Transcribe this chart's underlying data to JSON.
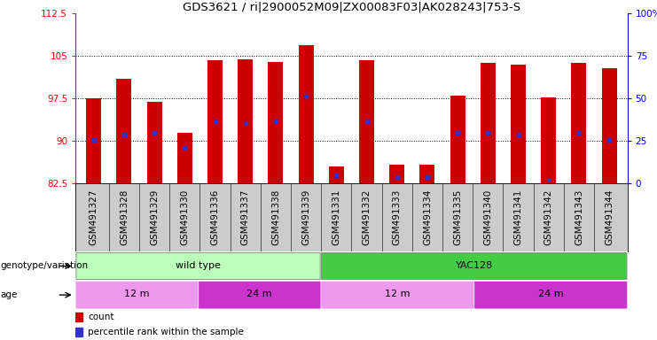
{
  "title": "GDS3621 / ri|2900052M09|ZX00083F03|AK028243|753-S",
  "samples": [
    "GSM491327",
    "GSM491328",
    "GSM491329",
    "GSM491330",
    "GSM491336",
    "GSM491337",
    "GSM491338",
    "GSM491339",
    "GSM491331",
    "GSM491332",
    "GSM491333",
    "GSM491334",
    "GSM491335",
    "GSM491340",
    "GSM491341",
    "GSM491342",
    "GSM491343",
    "GSM491344"
  ],
  "bar_bottoms": [
    82.5,
    82.5,
    82.5,
    82.5,
    82.5,
    82.5,
    82.5,
    82.5,
    82.5,
    82.5,
    82.5,
    82.5,
    82.5,
    82.5,
    82.5,
    82.5,
    82.5,
    82.5
  ],
  "bar_tops": [
    97.5,
    101.0,
    97.0,
    91.5,
    104.2,
    104.5,
    104.0,
    107.0,
    85.5,
    104.2,
    85.8,
    85.8,
    98.0,
    103.8,
    103.5,
    97.7,
    103.8,
    102.8
  ],
  "blue_marks": [
    90.2,
    91.2,
    91.5,
    88.8,
    93.5,
    93.2,
    93.5,
    97.8,
    84.0,
    93.5,
    83.7,
    83.7,
    91.5,
    91.5,
    91.2,
    83.2,
    91.5,
    90.2
  ],
  "bar_color": "#cc0000",
  "blue_color": "#3333cc",
  "ylim_left": [
    82.5,
    112.5
  ],
  "yticks_left": [
    82.5,
    90.0,
    97.5,
    105.0,
    112.5
  ],
  "ytick_labels_left": [
    "82.5",
    "90",
    "97.5",
    "105",
    "112.5"
  ],
  "ylim_right": [
    0,
    100
  ],
  "yticks_right": [
    0,
    25,
    50,
    75,
    100
  ],
  "ytick_labels_right": [
    "0",
    "25",
    "50",
    "75",
    "100%"
  ],
  "hlines": [
    90.0,
    97.5,
    105.0
  ],
  "bg_color": "#ffffff",
  "plot_bg": "#ffffff",
  "xtick_bg": "#cccccc",
  "genotype_groups": [
    {
      "label": "wild type",
      "start": 0,
      "end": 7,
      "color": "#bbffbb"
    },
    {
      "label": "YAC128",
      "start": 8,
      "end": 17,
      "color": "#44cc44"
    }
  ],
  "age_groups": [
    {
      "label": "12 m",
      "start": 0,
      "end": 3,
      "color": "#ee99ee"
    },
    {
      "label": "24 m",
      "start": 4,
      "end": 7,
      "color": "#cc33cc"
    },
    {
      "label": "12 m",
      "start": 8,
      "end": 12,
      "color": "#ee99ee"
    },
    {
      "label": "24 m",
      "start": 13,
      "end": 17,
      "color": "#cc33cc"
    }
  ],
  "legend_count_color": "#cc0000",
  "legend_pct_color": "#3333cc",
  "title_fontsize": 9.5,
  "tick_fontsize": 7.5,
  "label_fontsize": 8,
  "bar_width": 0.5
}
